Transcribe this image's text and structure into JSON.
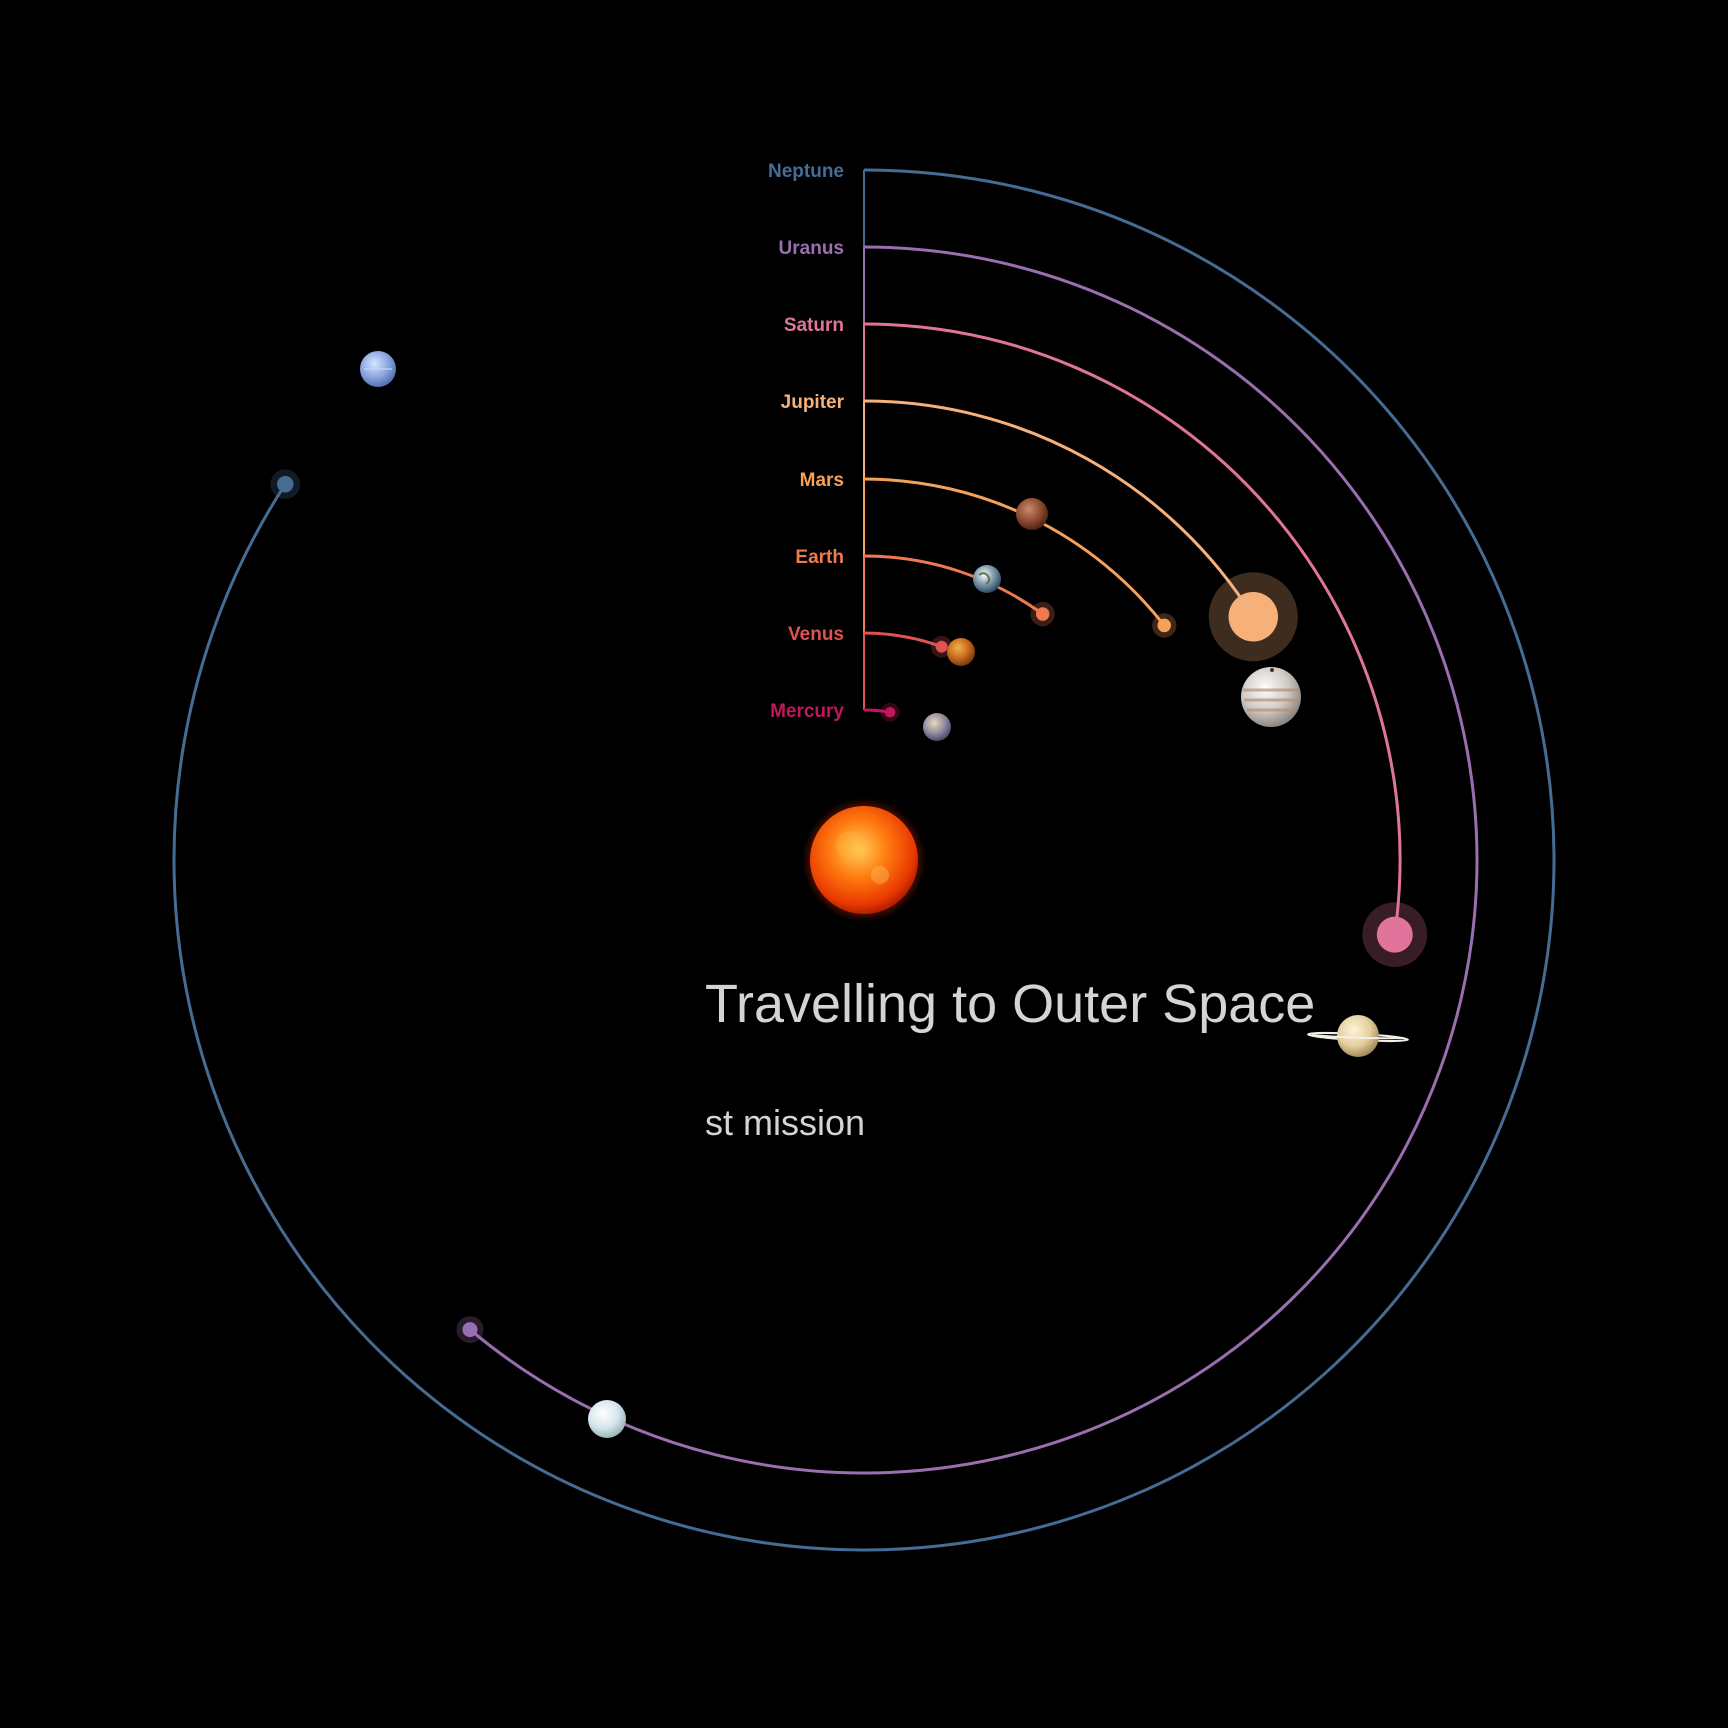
{
  "title": "Travelling to Outer Space",
  "subtitle": "st mission",
  "planets": [
    {
      "name": "Mercury",
      "color": "#c2185b",
      "arc_deg": 10,
      "icon": "mercury-icon"
    },
    {
      "name": "Venus",
      "color": "#e05252",
      "arc_deg": 20,
      "icon": "venus-icon"
    },
    {
      "name": "Earth",
      "color": "#ee7a50",
      "arc_deg": 36,
      "icon": "earth-icon"
    },
    {
      "name": "Mars",
      "color": "#f4a15a",
      "arc_deg": 52,
      "icon": "mars-icon"
    },
    {
      "name": "Jupiter",
      "color": "#f6b07a",
      "arc_deg": 58,
      "icon": "jupiter-icon"
    },
    {
      "name": "Saturn",
      "color": "#e0749a",
      "arc_deg": 98,
      "icon": "saturn-icon"
    },
    {
      "name": "Uranus",
      "color": "#9a6fb0",
      "arc_deg": 220,
      "icon": "uranus-icon"
    },
    {
      "name": "Neptune",
      "color": "#456d94",
      "arc_deg": 303,
      "icon": "neptune-icon"
    }
  ],
  "sun": {
    "icon": "sun-icon",
    "color": "#ff5a00"
  }
}
